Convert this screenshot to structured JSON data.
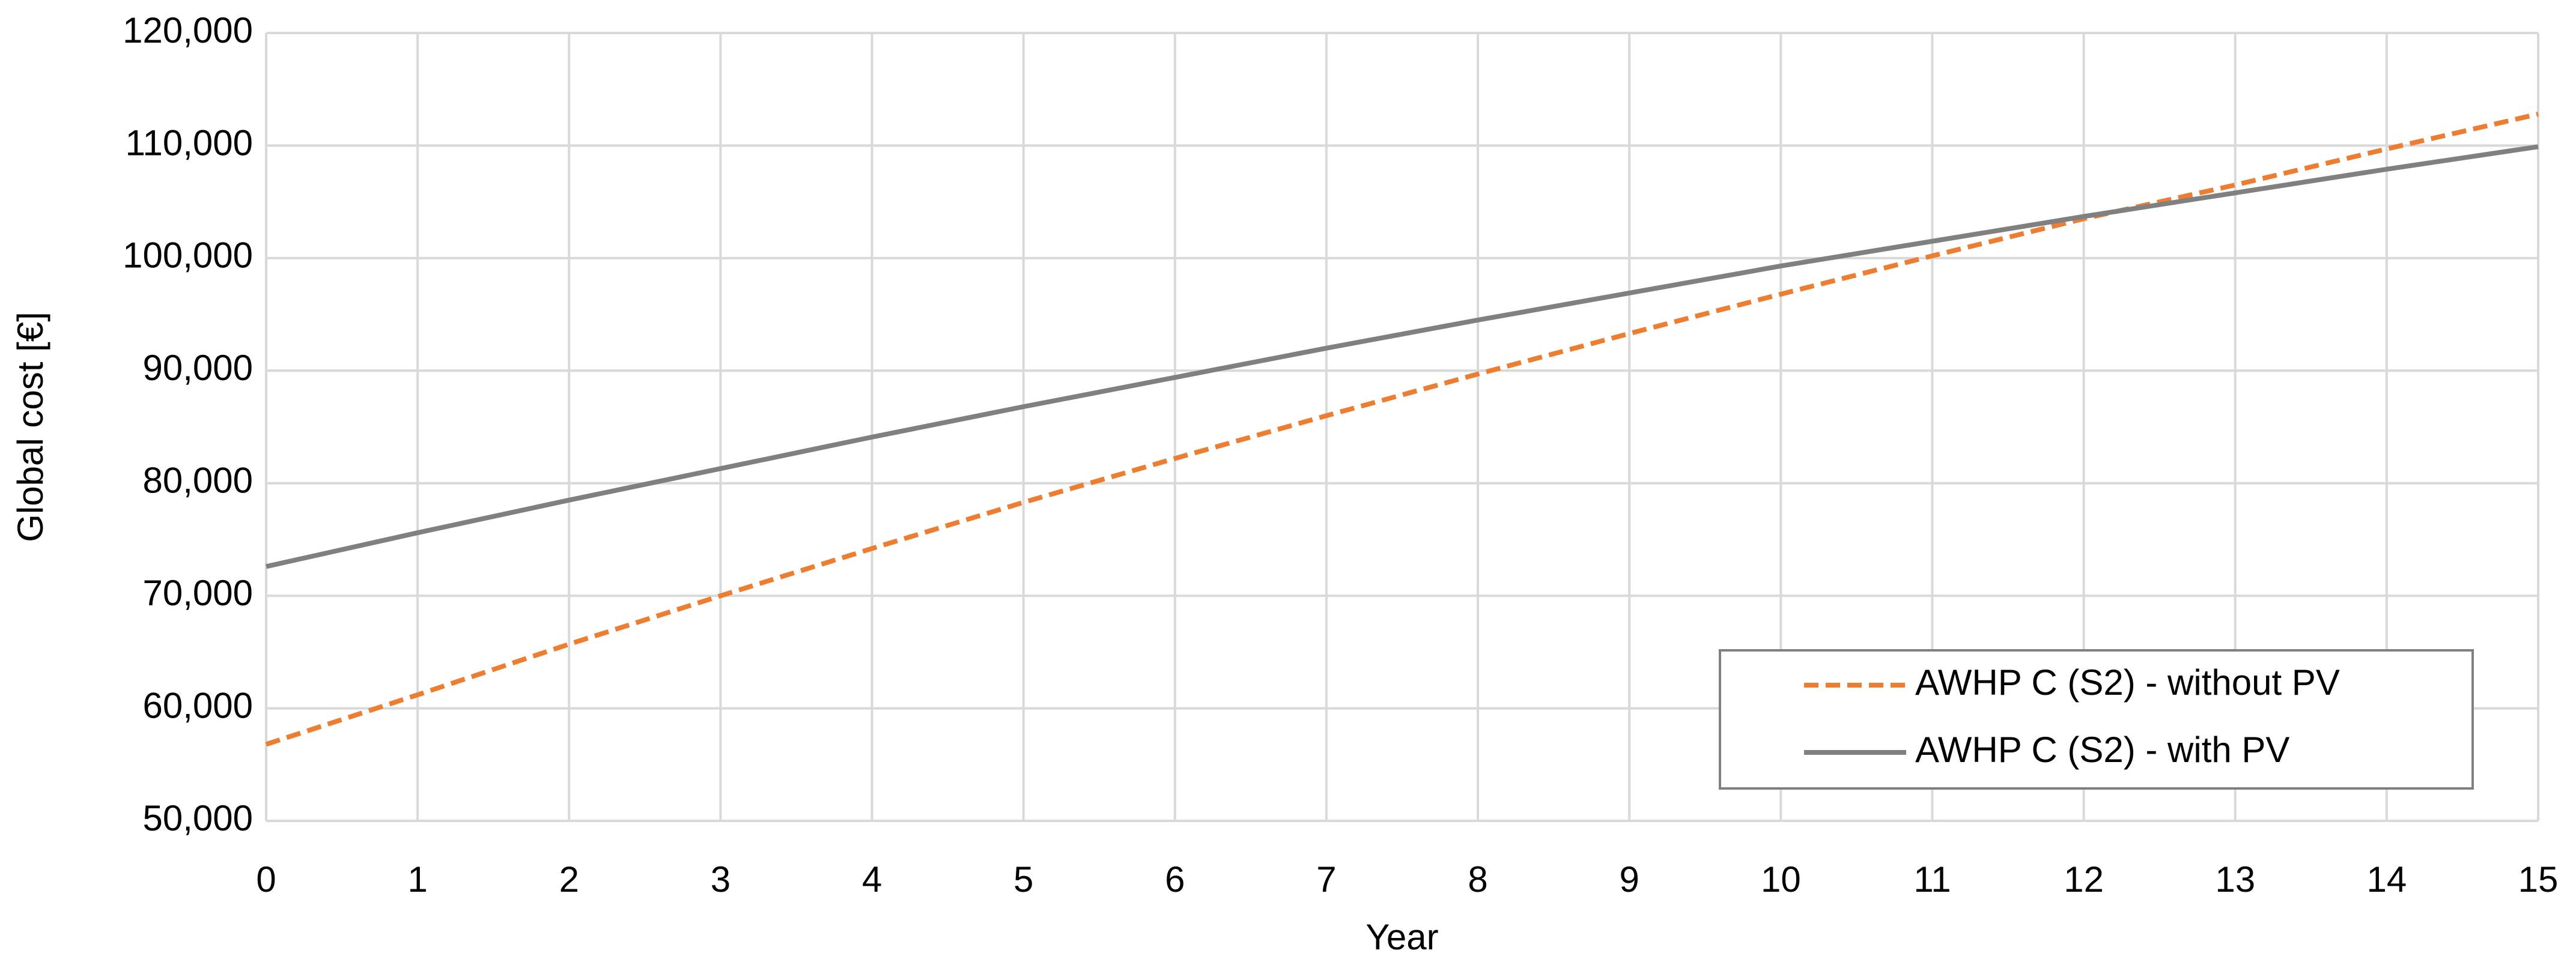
{
  "chart_data": {
    "type": "line",
    "x_label": "Year",
    "y_label": "Global cost [€]",
    "x": [
      0,
      1,
      2,
      3,
      4,
      5,
      6,
      7,
      8,
      9,
      10,
      11,
      12,
      13,
      14,
      15
    ],
    "series": [
      {
        "name": "AWHP C (S2) - without PV",
        "color": "#ed7d31",
        "dashed": true,
        "values": [
          56800,
          61200,
          65700,
          70000,
          74200,
          78300,
          82200,
          86000,
          89700,
          93300,
          96800,
          100200,
          103500,
          106500,
          109700,
          112800
        ]
      },
      {
        "name": "AWHP C (S2) - with PV",
        "color": "#808080",
        "dashed": false,
        "values": [
          72600,
          75600,
          78500,
          81300,
          84100,
          86800,
          89400,
          92000,
          94500,
          96900,
          99300,
          101500,
          103700,
          105800,
          107900,
          109900
        ]
      }
    ],
    "xlim": [
      0,
      15
    ],
    "xticks": [
      0,
      1,
      2,
      3,
      4,
      5,
      6,
      7,
      8,
      9,
      10,
      11,
      12,
      13,
      14,
      15
    ],
    "ylim": [
      50000,
      120000
    ],
    "yticks": [
      {
        "value": 50000,
        "label": "50,000"
      },
      {
        "value": 60000,
        "label": "60,000"
      },
      {
        "value": 70000,
        "label": "70,000"
      },
      {
        "value": 80000,
        "label": "80,000"
      },
      {
        "value": 90000,
        "label": "90,000"
      },
      {
        "value": 100000,
        "label": "100,000"
      },
      {
        "value": 110000,
        "label": "110,000"
      },
      {
        "value": 120000,
        "label": "120,000"
      }
    ],
    "grid": true,
    "legend": "lower right"
  }
}
